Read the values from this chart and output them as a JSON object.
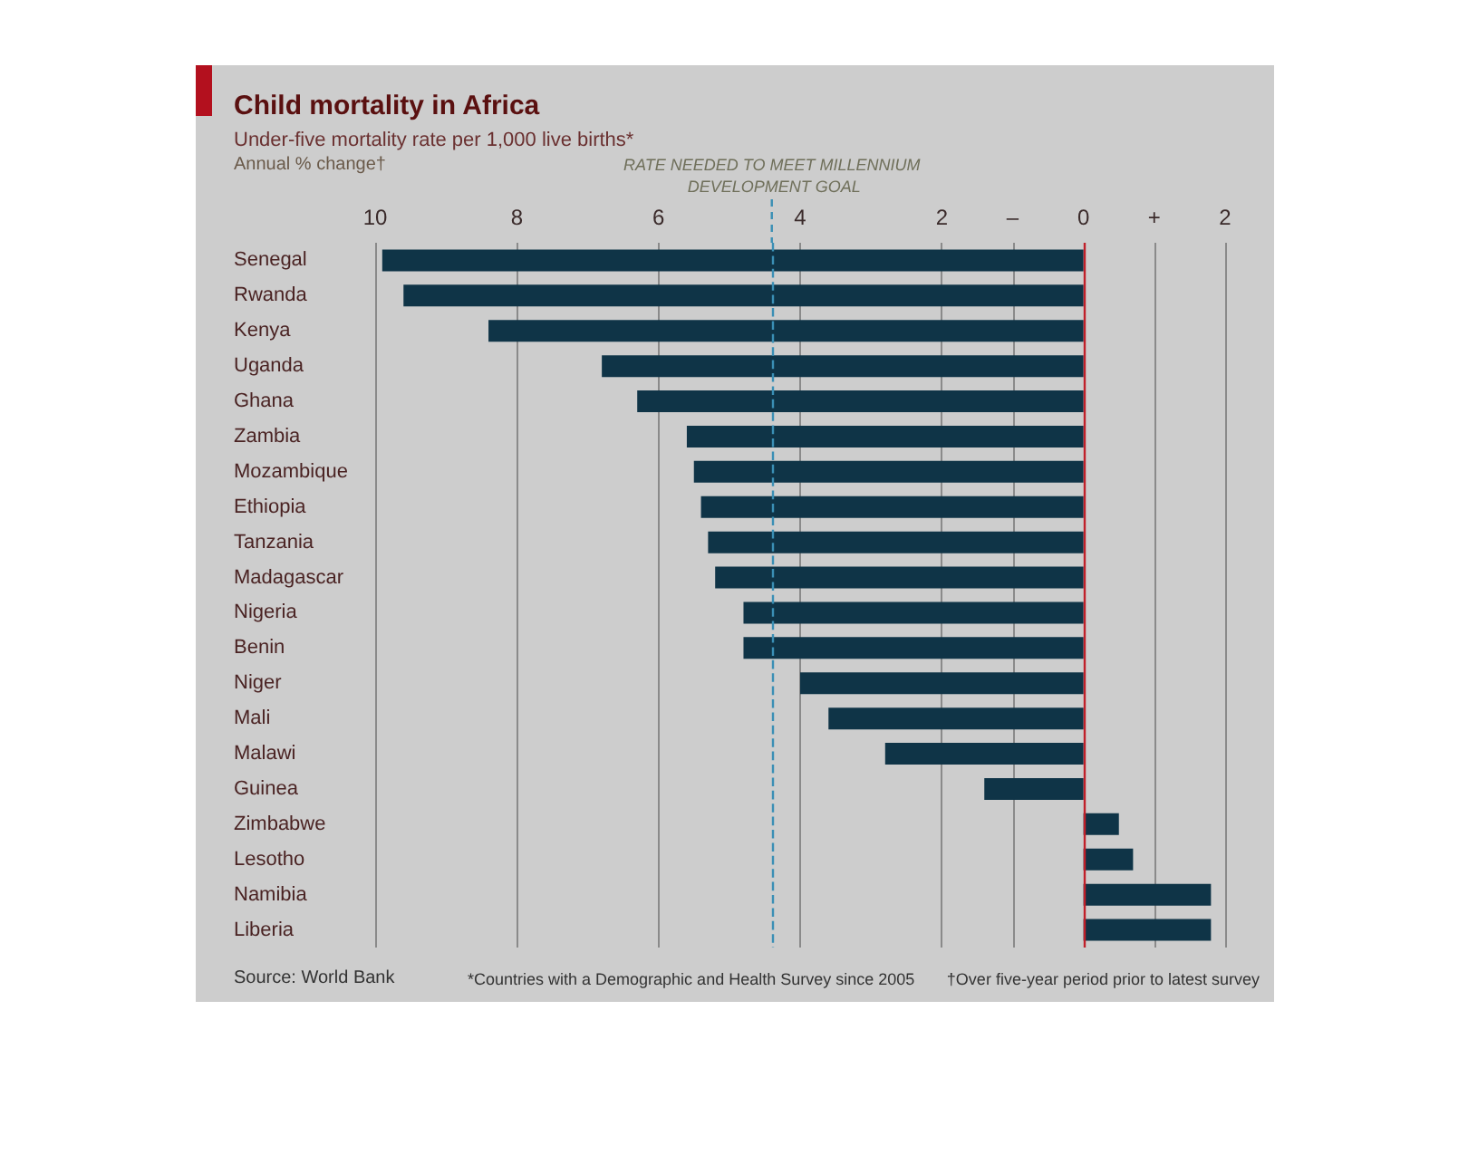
{
  "chart_data": {
    "type": "bar",
    "orientation": "horizontal",
    "title": "Child mortality in Africa",
    "subtitle": "Under-five mortality rate per 1,000 live births*",
    "xlabel": "Annual % change†",
    "categories": [
      "Senegal",
      "Rwanda",
      "Kenya",
      "Uganda",
      "Ghana",
      "Zambia",
      "Mozambique",
      "Ethiopia",
      "Tanzania",
      "Madagascar",
      "Nigeria",
      "Benin",
      "Niger",
      "Mali",
      "Malawi",
      "Guinea",
      "Zimbabwe",
      "Lesotho",
      "Namibia",
      "Liberia"
    ],
    "values": [
      -9.9,
      -9.6,
      -8.4,
      -6.8,
      -6.3,
      -5.6,
      -5.5,
      -5.4,
      -5.3,
      -5.2,
      -4.8,
      -4.8,
      -4.0,
      -3.6,
      -2.8,
      -1.4,
      0.5,
      0.7,
      1.8,
      1.8
    ],
    "color": "#0f3447",
    "xlim": [
      -10,
      2
    ],
    "xticks": [
      {
        "value": -10,
        "label": "10"
      },
      {
        "value": -8,
        "label": "8"
      },
      {
        "value": -6,
        "label": "6"
      },
      {
        "value": -4,
        "label": "4"
      },
      {
        "value": -2,
        "label": "2"
      },
      {
        "value": -1,
        "label": "–"
      },
      0,
      {
        "value": 1,
        "label": "+"
      },
      2
    ],
    "grid": "x",
    "ref_lines": [
      {
        "axis": "x",
        "value": -4.4,
        "label": "RATE NEEDED TO MEET MILLENNIUM DEVELOPMENT GOAL",
        "color": "#3a8fb5",
        "line_style": "dashed"
      },
      {
        "axis": "x",
        "value": 0,
        "color": "#c0202a",
        "line_style": "solid"
      }
    ],
    "annotations": [
      "Source: World Bank",
      "*Countries with a Demographic and Health Survey since 2005",
      "†Over five-year period prior to latest survey"
    ]
  }
}
